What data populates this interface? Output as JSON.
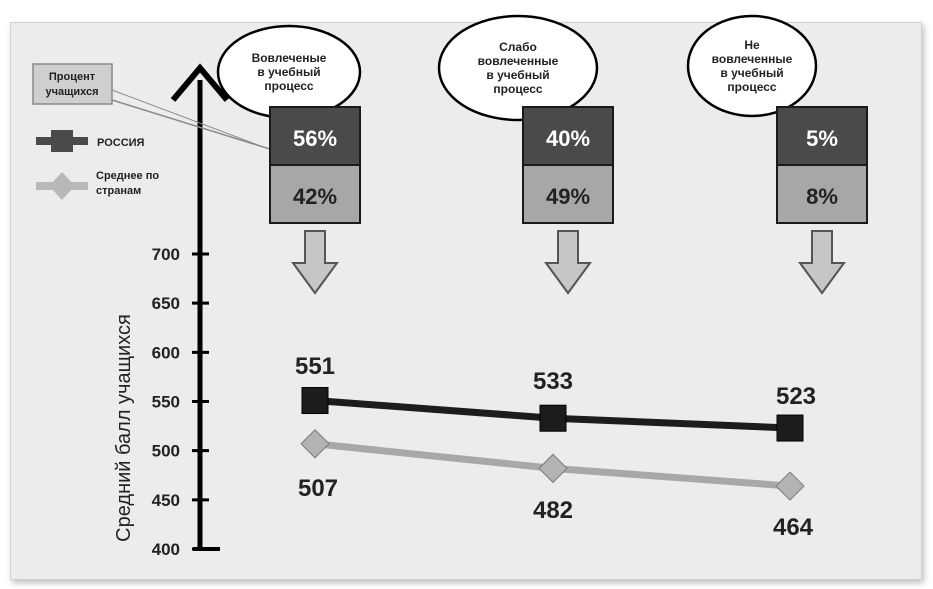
{
  "chart_data": {
    "type": "line",
    "ylabel": "Средний балл учащихся",
    "ylim": [
      400,
      700
    ],
    "yticks": [
      400,
      450,
      500,
      550,
      600,
      650,
      700
    ],
    "categories": [
      [
        "Вовлеченые",
        "в учебный",
        "процесс"
      ],
      [
        "Слабо",
        "вовлеченные",
        "в учебный",
        "процесс"
      ],
      [
        "Не",
        "вовлеченные",
        "в учебный",
        "процесс"
      ]
    ],
    "series": [
      {
        "name": "РОССИЯ",
        "values": [
          551,
          533,
          523
        ],
        "percent": [
          "56%",
          "40%",
          "5%"
        ],
        "color": "#1c1c1c"
      },
      {
        "name": "Среднее по странам",
        "values": [
          507,
          482,
          464
        ],
        "percent": [
          "42%",
          "49%",
          "8%"
        ],
        "color": "#a8a8a8"
      }
    ],
    "percent_callout": [
      "Процент",
      "учащихся"
    ],
    "grid": false,
    "legend_position": "left"
  },
  "colors": {
    "russia_box": "#4a4a4a",
    "average_box": "#a7a7a7",
    "russia_line": "#1c1c1c",
    "average_line": "#a8a8a8"
  }
}
